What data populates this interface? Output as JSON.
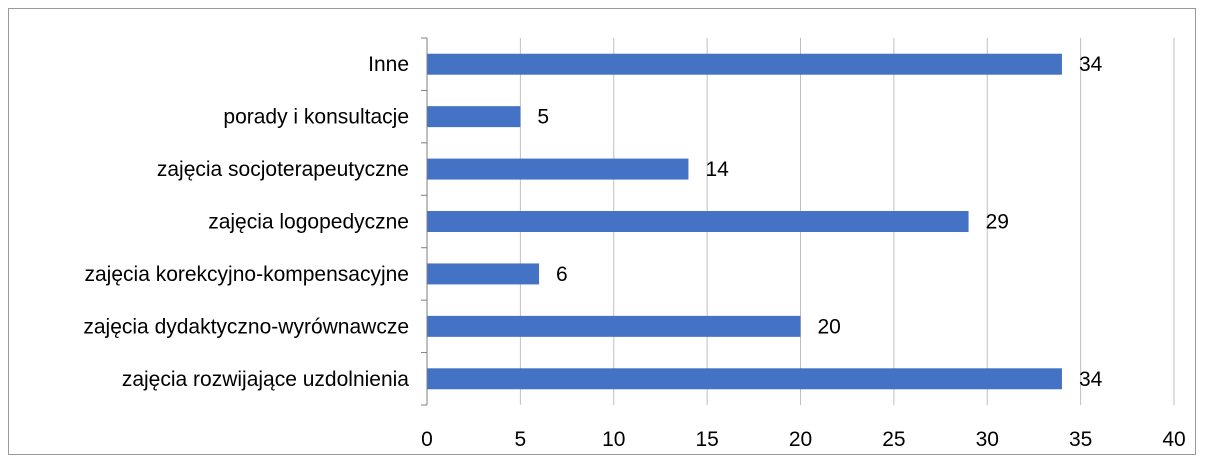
{
  "chart_data": {
    "type": "bar",
    "orientation": "horizontal",
    "categories": [
      "Inne",
      "porady i konsultacje",
      "zajęcia socjoterapeutyczne",
      "zajęcia logopedyczne",
      "zajęcia korekcyjno-kompensacyjne",
      "zajęcia dydaktyczno-wyrównawcze",
      "zajęcia rozwijające uzdolnienia"
    ],
    "values": [
      34,
      5,
      14,
      29,
      6,
      20,
      34
    ],
    "xlim": [
      0,
      40
    ],
    "xticks": [
      0,
      5,
      10,
      15,
      20,
      25,
      30,
      35,
      40
    ],
    "grid": true,
    "legend": "none",
    "bar_color": "#4472c4"
  }
}
